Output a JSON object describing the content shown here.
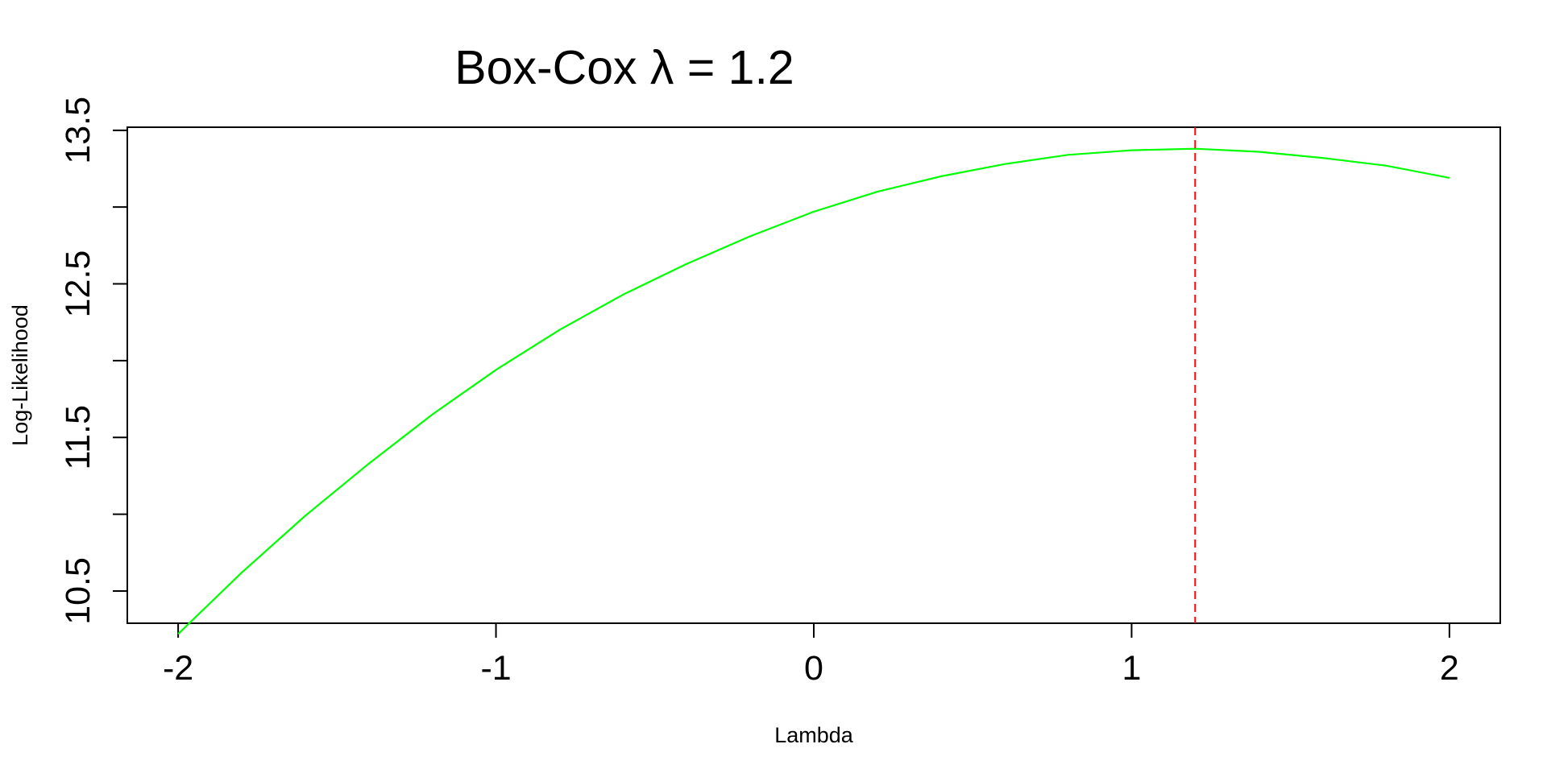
{
  "chart_data": {
    "type": "line",
    "title": "Box-Cox λ = 1.2",
    "xlabel": "Lambda",
    "ylabel": "Log-Likelihood",
    "xlim": [
      -2.16,
      2.16
    ],
    "ylim": [
      10.29,
      13.52
    ],
    "x_ticks": [
      -2,
      -1,
      0,
      1,
      2
    ],
    "x_tick_labels": [
      "-2",
      "-1",
      "0",
      "1",
      "2"
    ],
    "y_ticks": [
      10.5,
      11.0,
      11.5,
      12.0,
      12.5,
      13.0,
      13.5
    ],
    "y_tick_labels": [
      "10.5",
      "",
      "11.5",
      "",
      "12.5",
      "",
      "13.5"
    ],
    "grid": false,
    "series": [
      {
        "color": "#00ff00",
        "x": [
          -2.0,
          -1.8,
          -1.6,
          -1.4,
          -1.2,
          -1.0,
          -0.8,
          -0.6,
          -0.4,
          -0.2,
          0.0,
          0.2,
          0.4,
          0.6,
          0.8,
          1.0,
          1.2,
          1.4,
          1.6,
          1.8,
          2.0
        ],
        "y": [
          10.22,
          10.62,
          10.99,
          11.33,
          11.65,
          11.94,
          12.2,
          12.43,
          12.63,
          12.81,
          12.97,
          13.1,
          13.2,
          13.28,
          13.34,
          13.37,
          13.38,
          13.36,
          13.32,
          13.27,
          13.19
        ]
      }
    ],
    "reference_lines": [
      {
        "axis": "x",
        "value": 1.2,
        "color": "#ff0000",
        "style": "dashed"
      }
    ]
  }
}
